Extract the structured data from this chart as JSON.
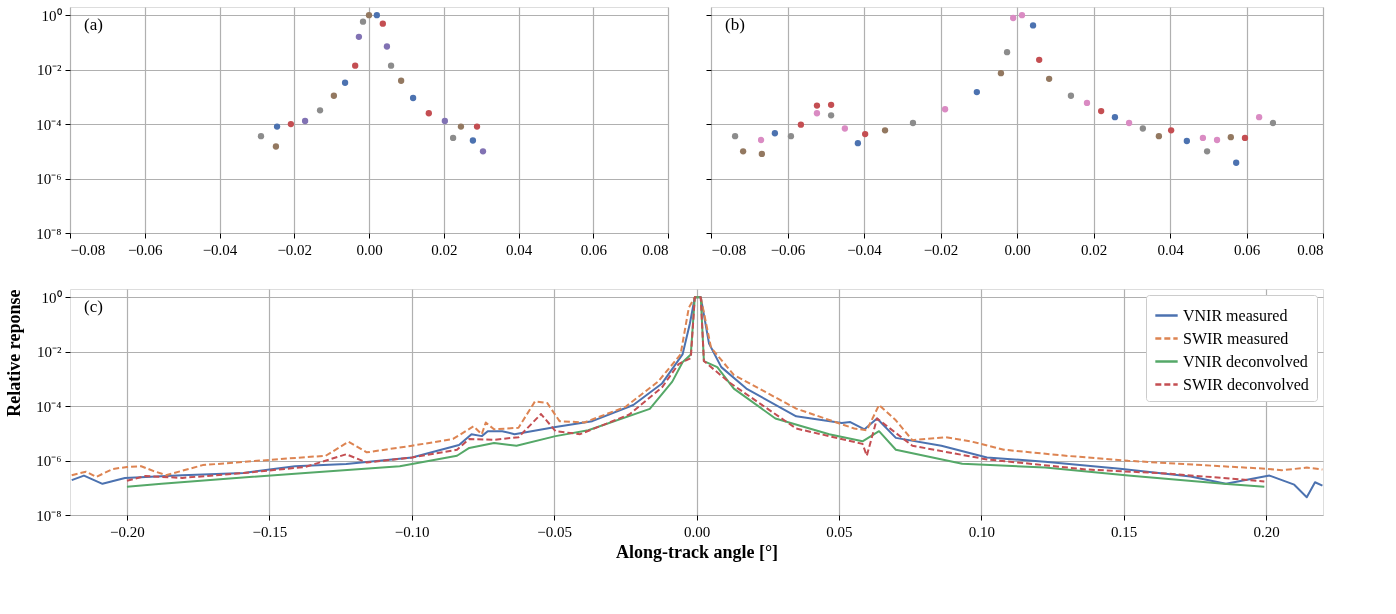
{
  "chart_data": [
    {
      "type": "scatter",
      "annotations": [
        "(a)"
      ],
      "marker": "circle",
      "grid": true,
      "legend": false,
      "log": "y",
      "xlim": [
        -0.08,
        0.08
      ],
      "xticks": [
        {
          "value": -0.08,
          "label": "−0.08"
        },
        {
          "value": -0.06,
          "label": "−0.06"
        },
        {
          "value": -0.04,
          "label": "−0.04"
        },
        {
          "value": -0.02,
          "label": "−0.02"
        },
        {
          "value": 0,
          "label": "0.00"
        },
        {
          "value": 0.02,
          "label": "0.02"
        },
        {
          "value": 0.04,
          "label": "0.04"
        },
        {
          "value": 0.06,
          "label": "0.06"
        },
        {
          "value": 0.08,
          "label": "0.08"
        }
      ],
      "ylim": [
        1e-08,
        2
      ],
      "yticks": [
        {
          "value": 1e-08,
          "label": "10⁻⁸"
        },
        {
          "value": 1e-06,
          "label": "10⁻⁶"
        },
        {
          "value": 0.0001,
          "label": "10⁻⁴"
        },
        {
          "value": 0.01,
          "label": "10⁻²"
        },
        {
          "value": 1,
          "label": "10⁰"
        }
      ],
      "series": [
        {
          "color": "#8c8c8c",
          "x": [
            -0.0289,
            -0.0131,
            -0.0016,
            0.0059,
            0.0225
          ],
          "values": [
            3.6e-05,
            0.00032,
            0.58,
            0.014,
            3.1e-05
          ]
        },
        {
          "color": "#937860",
          "x": [
            -0.0249,
            -0.0094,
            0,
            0.0086,
            0.0246
          ],
          "values": [
            1.5e-05,
            0.0011,
            1,
            0.0039,
            8.1e-05
          ]
        },
        {
          "color": "#4c72b0",
          "x": [
            -0.0246,
            -0.0064,
            0.0021,
            0.0118,
            0.0278
          ],
          "values": [
            8.1e-05,
            0.0033,
            1,
            0.00091,
            2.5e-05
          ]
        },
        {
          "color": "#c44e52",
          "x": [
            -0.0209,
            -0.0037,
            0.0037,
            0.016,
            0.0289
          ],
          "values": [
            0.0001,
            0.014,
            0.49,
            0.00025,
            8.1e-05
          ]
        },
        {
          "color": "#8172b3",
          "x": [
            -0.0171,
            -0.0027,
            0.0048,
            0.0203,
            0.0305
          ],
          "values": [
            0.00013,
            0.16,
            0.071,
            0.00013,
            1e-05
          ]
        }
      ]
    },
    {
      "type": "scatter",
      "annotations": [
        "(b)"
      ],
      "marker": "circle",
      "grid": true,
      "legend": false,
      "log": "y",
      "tick_labels": "x",
      "xlim": [
        -0.08,
        0.08
      ],
      "xticks": [
        {
          "value": -0.08,
          "label": "−0.08"
        },
        {
          "value": -0.06,
          "label": "−0.06"
        },
        {
          "value": -0.04,
          "label": "−0.04"
        },
        {
          "value": -0.02,
          "label": "−0.02"
        },
        {
          "value": 0,
          "label": "0.00"
        },
        {
          "value": 0.02,
          "label": "0.02"
        },
        {
          "value": 0.04,
          "label": "0.04"
        },
        {
          "value": 0.06,
          "label": "0.06"
        },
        {
          "value": 0.08,
          "label": "0.08"
        }
      ],
      "ylim": [
        1e-08,
        2
      ],
      "yticks": [
        1e-08,
        1e-06,
        0.0001,
        0.01,
        1
      ],
      "series": [
        {
          "color": "#8c8c8c",
          "x": [
            -0.0737,
            -0.0591,
            -0.0486,
            -0.0272,
            -0.0026,
            0.0141,
            0.0329,
            0.0497,
            0.0669
          ],
          "values": [
            3.6e-05,
            3.6e-05,
            0.00021,
            0.00011,
            0.044,
            0.0011,
            6.9e-05,
            1e-05,
            0.00011
          ]
        },
        {
          "color": "#937860",
          "x": [
            -0.0716,
            -0.0667,
            -0.0345,
            -0.0042,
            0.0084,
            0.0371,
            0.0559
          ],
          "values": [
            1e-05,
            8e-06,
            5.9e-05,
            0.0074,
            0.0046,
            3.6e-05,
            3.3e-05
          ]
        },
        {
          "color": "#4c72b0",
          "x": [
            -0.0633,
            -0.0416,
            -0.0105,
            0.0042,
            0.0256,
            0.0444,
            0.0573
          ],
          "values": [
            4.6e-05,
            2e-05,
            0.0015,
            0.42,
            0.00018,
            2.4e-05,
            3.8e-06
          ]
        },
        {
          "color": "#c44e52",
          "x": [
            -0.0565,
            -0.0523,
            -0.0486,
            -0.0397,
            0.0058,
            0.022,
            0.0403,
            0.0596
          ],
          "values": [
            9.5e-05,
            0.00048,
            0.00051,
            4.3e-05,
            0.023,
            0.0003,
            5.9e-05,
            3.1e-05
          ]
        },
        {
          "color": "#da8bc3",
          "x": [
            -0.0669,
            -0.0523,
            -0.045,
            -0.0188,
            -0.001,
            0.0013,
            0.0183,
            0.0293,
            0.0486,
            0.0523,
            0.0633
          ],
          "values": [
            2.6e-05,
            0.00025,
            6.9e-05,
            0.00035,
            0.79,
            1,
            0.0006,
            0.00011,
            3.1e-05,
            2.6e-05,
            0.00018
          ]
        }
      ]
    },
    {
      "type": "line",
      "annotations": [
        "(c)"
      ],
      "xlabel": "Along-track angle [°]",
      "ylabel": "Relative reponse",
      "grid": true,
      "legend": "top right",
      "log": "y",
      "xlim": [
        -0.22,
        0.22
      ],
      "xticks": [
        {
          "value": -0.2,
          "label": "−0.20"
        },
        {
          "value": -0.15,
          "label": "−0.15"
        },
        {
          "value": -0.1,
          "label": "−0.10"
        },
        {
          "value": -0.05,
          "label": "−0.05"
        },
        {
          "value": 0,
          "label": "0.00"
        },
        {
          "value": 0.05,
          "label": "0.05"
        },
        {
          "value": 0.1,
          "label": "0.10"
        },
        {
          "value": 0.15,
          "label": "0.15"
        },
        {
          "value": 0.2,
          "label": "0.20"
        }
      ],
      "ylim": [
        1e-08,
        2
      ],
      "yticks": [
        {
          "value": 1e-08,
          "label": "10⁻⁸"
        },
        {
          "value": 1e-06,
          "label": "10⁻⁶"
        },
        {
          "value": 0.0001,
          "label": "10⁻⁴"
        },
        {
          "value": 0.01,
          "label": "10⁻²"
        },
        {
          "value": 1,
          "label": "10⁰"
        }
      ],
      "series": [
        {
          "name": "VNIR measured",
          "color": "#4c72b0",
          "line_style": "solid",
          "x": [
            -0.2194,
            -0.2151,
            -0.2086,
            -0.2007,
            -0.1806,
            -0.159,
            -0.141,
            -0.123,
            -0.0999,
            -0.0834,
            -0.079,
            -0.0754,
            -0.0733,
            -0.0682,
            -0.0639,
            -0.0495,
            -0.0366,
            -0.0222,
            -0.0121,
            -0.0049,
            -0.0023,
            -0.0006,
            0.0015,
            0.0044,
            0.0087,
            0.0175,
            0.035,
            0.051,
            0.054,
            0.059,
            0.0634,
            0.07,
            0.086,
            0.102,
            0.1224,
            0.1487,
            0.1735,
            0.1859,
            0.2012,
            0.2099,
            0.2143,
            0.2172,
            0.2198
          ],
          "values": [
            1.9e-07,
            2.8e-07,
            1.4e-07,
            2.3e-07,
            2.9e-07,
            3.5e-07,
            6.2e-07,
            7.4e-07,
            1.3e-06,
            3.7e-06,
            9.3e-06,
            7.9e-06,
            1.2e-05,
            1.2e-05,
            9.3e-06,
            1.7e-05,
            2.8e-05,
            0.00011,
            0.00068,
            0.0079,
            0.11,
            1,
            1,
            0.02,
            0.0027,
            0.00044,
            4.2e-05,
            2.4e-05,
            2.6e-05,
            1.4e-05,
            3.5e-05,
            6.8e-06,
            3.5e-06,
            1.3e-06,
            9.1e-07,
            5e-07,
            2.6e-07,
            1.4e-07,
            2.8e-07,
            1.3e-07,
            4.5e-08,
            1.6e-07,
            1.2e-07
          ]
        },
        {
          "name": "SWIR measured",
          "color": "#dd8452",
          "line_style": "dashed",
          "x": [
            -0.2194,
            -0.2144,
            -0.2108,
            -0.205,
            -0.2,
            -0.195,
            -0.1906,
            -0.1863,
            -0.1734,
            -0.1618,
            -0.1431,
            -0.1302,
            -0.1222,
            -0.1158,
            -0.0999,
            -0.0855,
            -0.0783,
            -0.0754,
            -0.074,
            -0.0711,
            -0.0625,
            -0.0567,
            -0.0524,
            -0.0481,
            -0.0394,
            -0.025,
            -0.0135,
            -0.0056,
            -0.0027,
            -0.0006,
            0.0015,
            0.0051,
            0.0131,
            0.035,
            0.0554,
            0.0598,
            0.0641,
            0.07,
            0.0758,
            0.0875,
            0.0962,
            0.1079,
            0.1297,
            0.1516,
            0.1808,
            0.2,
            0.2055,
            0.2143,
            0.2198
          ],
          "values": [
            2.9e-07,
            3.9e-07,
            2.5e-07,
            4.9e-07,
            5.8e-07,
            6.2e-07,
            4.1e-07,
            2.9e-07,
            6.8e-07,
            8.5e-07,
            1.2e-06,
            1.5e-06,
            4.9e-06,
            2e-06,
            3.5e-06,
            6.2e-06,
            1.8e-05,
            9.3e-06,
            2.5e-05,
            1.4e-05,
            1.6e-05,
            0.00015,
            0.00013,
            2.8e-05,
            2.5e-05,
            9.3e-05,
            0.00079,
            0.0079,
            0.41,
            1,
            1,
            0.014,
            0.0014,
            8.1e-05,
            1.5e-05,
            1.3e-05,
            0.00011,
            3e-05,
            5.6e-06,
            7.2e-06,
            5.1e-06,
            2.5e-06,
            1.5e-06,
            9.8e-07,
            6.5e-07,
            5e-07,
            4.4e-07,
            5.5e-07,
            4.7e-07
          ]
        },
        {
          "name": "VNIR deconvolved",
          "color": "#55a868",
          "line_style": "solid",
          "x": [
            -0.2,
            -0.1878,
            -0.1662,
            -0.1374,
            -0.1042,
            -0.0841,
            -0.0798,
            -0.0711,
            -0.0632,
            -0.0495,
            -0.038,
            -0.0164,
            -0.0085,
            -0.0049,
            -0.002,
            -0.0006,
            0.0015,
            0.0026,
            0.0073,
            0.0131,
            0.0277,
            0.0466,
            0.0583,
            0.0641,
            0.07,
            0.0933,
            0.1224,
            0.1516,
            0.1851,
            0.1994
          ],
          "values": [
            1.1e-07,
            1.4e-07,
            2.1e-07,
            3.5e-07,
            6.2e-07,
            1.5e-06,
            2.9e-06,
            4.4e-06,
            3.5e-06,
            7.9e-06,
            1.3e-05,
            7.9e-05,
            0.00079,
            0.0041,
            0.0079,
            1,
            1,
            0.0045,
            0.0027,
            0.00044,
            3.5e-05,
            9.3e-06,
            5.1e-06,
            1.2e-05,
            2.5e-06,
            7.6e-07,
            5.5e-07,
            2.8e-07,
            1.4e-07,
            1.1e-07
          ]
        },
        {
          "name": "SWIR deconvolved",
          "color": "#c44e52",
          "line_style": "dashed",
          "x": [
            -0.2,
            -0.1935,
            -0.1806,
            -0.159,
            -0.1374,
            -0.123,
            -0.1158,
            -0.0999,
            -0.0841,
            -0.0798,
            -0.0711,
            -0.0625,
            -0.0546,
            -0.0495,
            -0.0409,
            -0.0236,
            -0.0121,
            -0.0063,
            -0.002,
            -0.0006,
            0.0015,
            0.0026,
            0.0117,
            0.035,
            0.0583,
            0.0598,
            0.0634,
            0.0758,
            0.102,
            0.137,
            0.1662,
            0.1994
          ],
          "values": [
            1.8e-07,
            2.7e-07,
            2.3e-07,
            3.5e-07,
            5.8e-07,
            1.7e-06,
            8.5e-07,
            1.3e-06,
            2.5e-06,
            6.2e-06,
            5.8e-06,
            7.2e-06,
            5.1e-05,
            1.2e-05,
            9.3e-06,
            4.9e-05,
            0.00049,
            0.0035,
            0.0058,
            1,
            1,
            0.0045,
            0.00072,
            1.5e-05,
            4.1e-06,
            1.5e-06,
            3.5e-05,
            3.5e-06,
            1.1e-06,
            4.7e-07,
            3.3e-07,
            1.7e-07
          ]
        }
      ]
    }
  ]
}
